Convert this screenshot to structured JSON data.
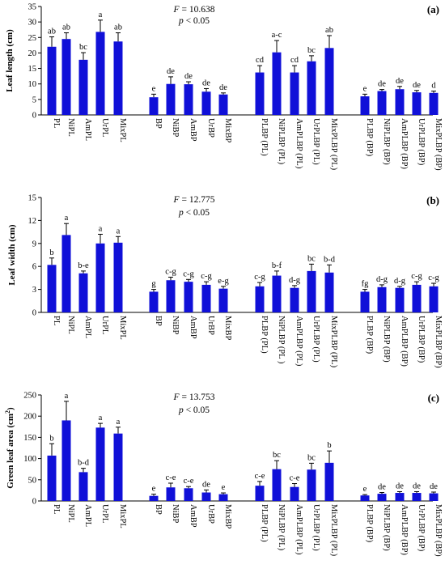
{
  "chart_data": [
    {
      "type": "bar",
      "panel_label": "(a)",
      "ylabel": "Leaf length (cm)",
      "ylim": [
        0,
        35
      ],
      "yticks": [
        0,
        5,
        10,
        15,
        20,
        25,
        30,
        35
      ],
      "stat_line1": "F = 10.638",
      "stat_line2": "p < 0.05",
      "categories": [
        "PL",
        "NiPL",
        "AmPL",
        "UrPL",
        "MixPL",
        "BP",
        "NiBP",
        "AmBP",
        "UrBP",
        "MixBP",
        "PLBP (PL)",
        "NiPLBP (PL)",
        "AmPLBP (PL)",
        "UrPLBP (PL)",
        "MixPLBP (PL)",
        "PLBP (BP)",
        "NiPLBP (BP)",
        "AmPLBP (BP)",
        "UrPLBP (BP)",
        "MixPLBP (BP)"
      ],
      "values": [
        22.0,
        24.5,
        17.8,
        26.8,
        23.7,
        5.7,
        10.0,
        9.9,
        7.5,
        6.6,
        13.7,
        20.2,
        13.7,
        17.3,
        21.6,
        6.0,
        7.7,
        8.3,
        7.3,
        7.1
      ],
      "errors": [
        3.2,
        2.0,
        2.3,
        3.8,
        2.8,
        1.0,
        2.3,
        0.8,
        1.0,
        0.5,
        2.2,
        3.8,
        2.2,
        1.8,
        4.0,
        0.7,
        0.5,
        0.9,
        0.6,
        0.6
      ],
      "letters": [
        "ab",
        "ab",
        "bc",
        "a",
        "ab",
        "e",
        "de",
        "de",
        "de",
        "de",
        "cd",
        "a-c",
        "cd",
        "bc",
        "ab",
        "e",
        "de",
        "de",
        "de",
        "d"
      ]
    },
    {
      "type": "bar",
      "panel_label": "(b)",
      "ylabel": "Leaf width (cm)",
      "ylim": [
        0,
        15
      ],
      "yticks": [
        0,
        3,
        6,
        9,
        12,
        15
      ],
      "stat_line1": "F = 12.775",
      "stat_line2": "p < 0.05",
      "categories": [
        "PL",
        "NiPL",
        "AmPL",
        "UrPL",
        "MixPL",
        "BP",
        "NiBP",
        "AmBP",
        "UrBP",
        "MixBP",
        "PLBP (PL)",
        "NiPLBP (PL )",
        "AmPLBP (PL)",
        "UrPLBP (PL)",
        "MixPLBP (PL)",
        "PLBP (BP)",
        "NiPLBP (BP)",
        "AmPLBP (BP)",
        "UrPLBP (BP)",
        "MixPLBP (BP)"
      ],
      "values": [
        6.2,
        10.1,
        5.1,
        9.0,
        9.1,
        2.7,
        4.2,
        4.0,
        3.6,
        3.1,
        3.4,
        4.8,
        3.2,
        5.4,
        5.2,
        2.7,
        3.3,
        3.2,
        3.6,
        3.4
      ],
      "errors": [
        0.9,
        1.5,
        0.3,
        1.2,
        0.8,
        0.3,
        0.4,
        0.3,
        0.4,
        0.3,
        0.5,
        0.6,
        0.3,
        0.9,
        1.0,
        0.3,
        0.3,
        0.2,
        0.4,
        0.4
      ],
      "letters": [
        "b",
        "a",
        "b-e",
        "a",
        "a",
        "g",
        "c-g",
        "c-g",
        "c-g",
        "e-g",
        "c-g",
        "b-f",
        "d-g",
        "bc",
        "b-d",
        "fg",
        "d-g",
        "d-g",
        "c-g",
        "c-g"
      ]
    },
    {
      "type": "bar",
      "panel_label": "(c)",
      "ylabel": "Green leaf area (cm²)",
      "ylim": [
        0,
        250
      ],
      "yticks": [
        0,
        50,
        100,
        150,
        200,
        250
      ],
      "stat_line1": "F = 13.753",
      "stat_line2": "p < 0.05",
      "categories": [
        "PL",
        "NiPL",
        "AmPL",
        "UrPL",
        "MixPL",
        "BP",
        "NiBP",
        "AmBP",
        "UrBP",
        "MixBP",
        "PLBP (PL)",
        "NiPLBP (PL)",
        "AmPLBP (PL)",
        "UrPLBP (PL)",
        "MixPLBP (PL)",
        "PLBP (BP)",
        "NiPLBP (BP)",
        "AmPLBP (BP)",
        "UrPLBP (BP)",
        "MixPLBP (BP)"
      ],
      "values": [
        107,
        190,
        68,
        173,
        159,
        12,
        32,
        30,
        20,
        16,
        36,
        75,
        33,
        74,
        90,
        13,
        17,
        19,
        19,
        18
      ],
      "errors": [
        28,
        45,
        9,
        10,
        15,
        4,
        10,
        4,
        6,
        3,
        10,
        20,
        8,
        15,
        28,
        2,
        3,
        3,
        3,
        3
      ],
      "letters": [
        "b",
        "a",
        "b-d",
        "a",
        "a",
        "e",
        "c-e",
        "c-e",
        "de",
        "e",
        "c-e",
        "bc",
        "c-e",
        "bc",
        "b",
        "e",
        "de",
        "de",
        "de",
        "de"
      ]
    }
  ]
}
